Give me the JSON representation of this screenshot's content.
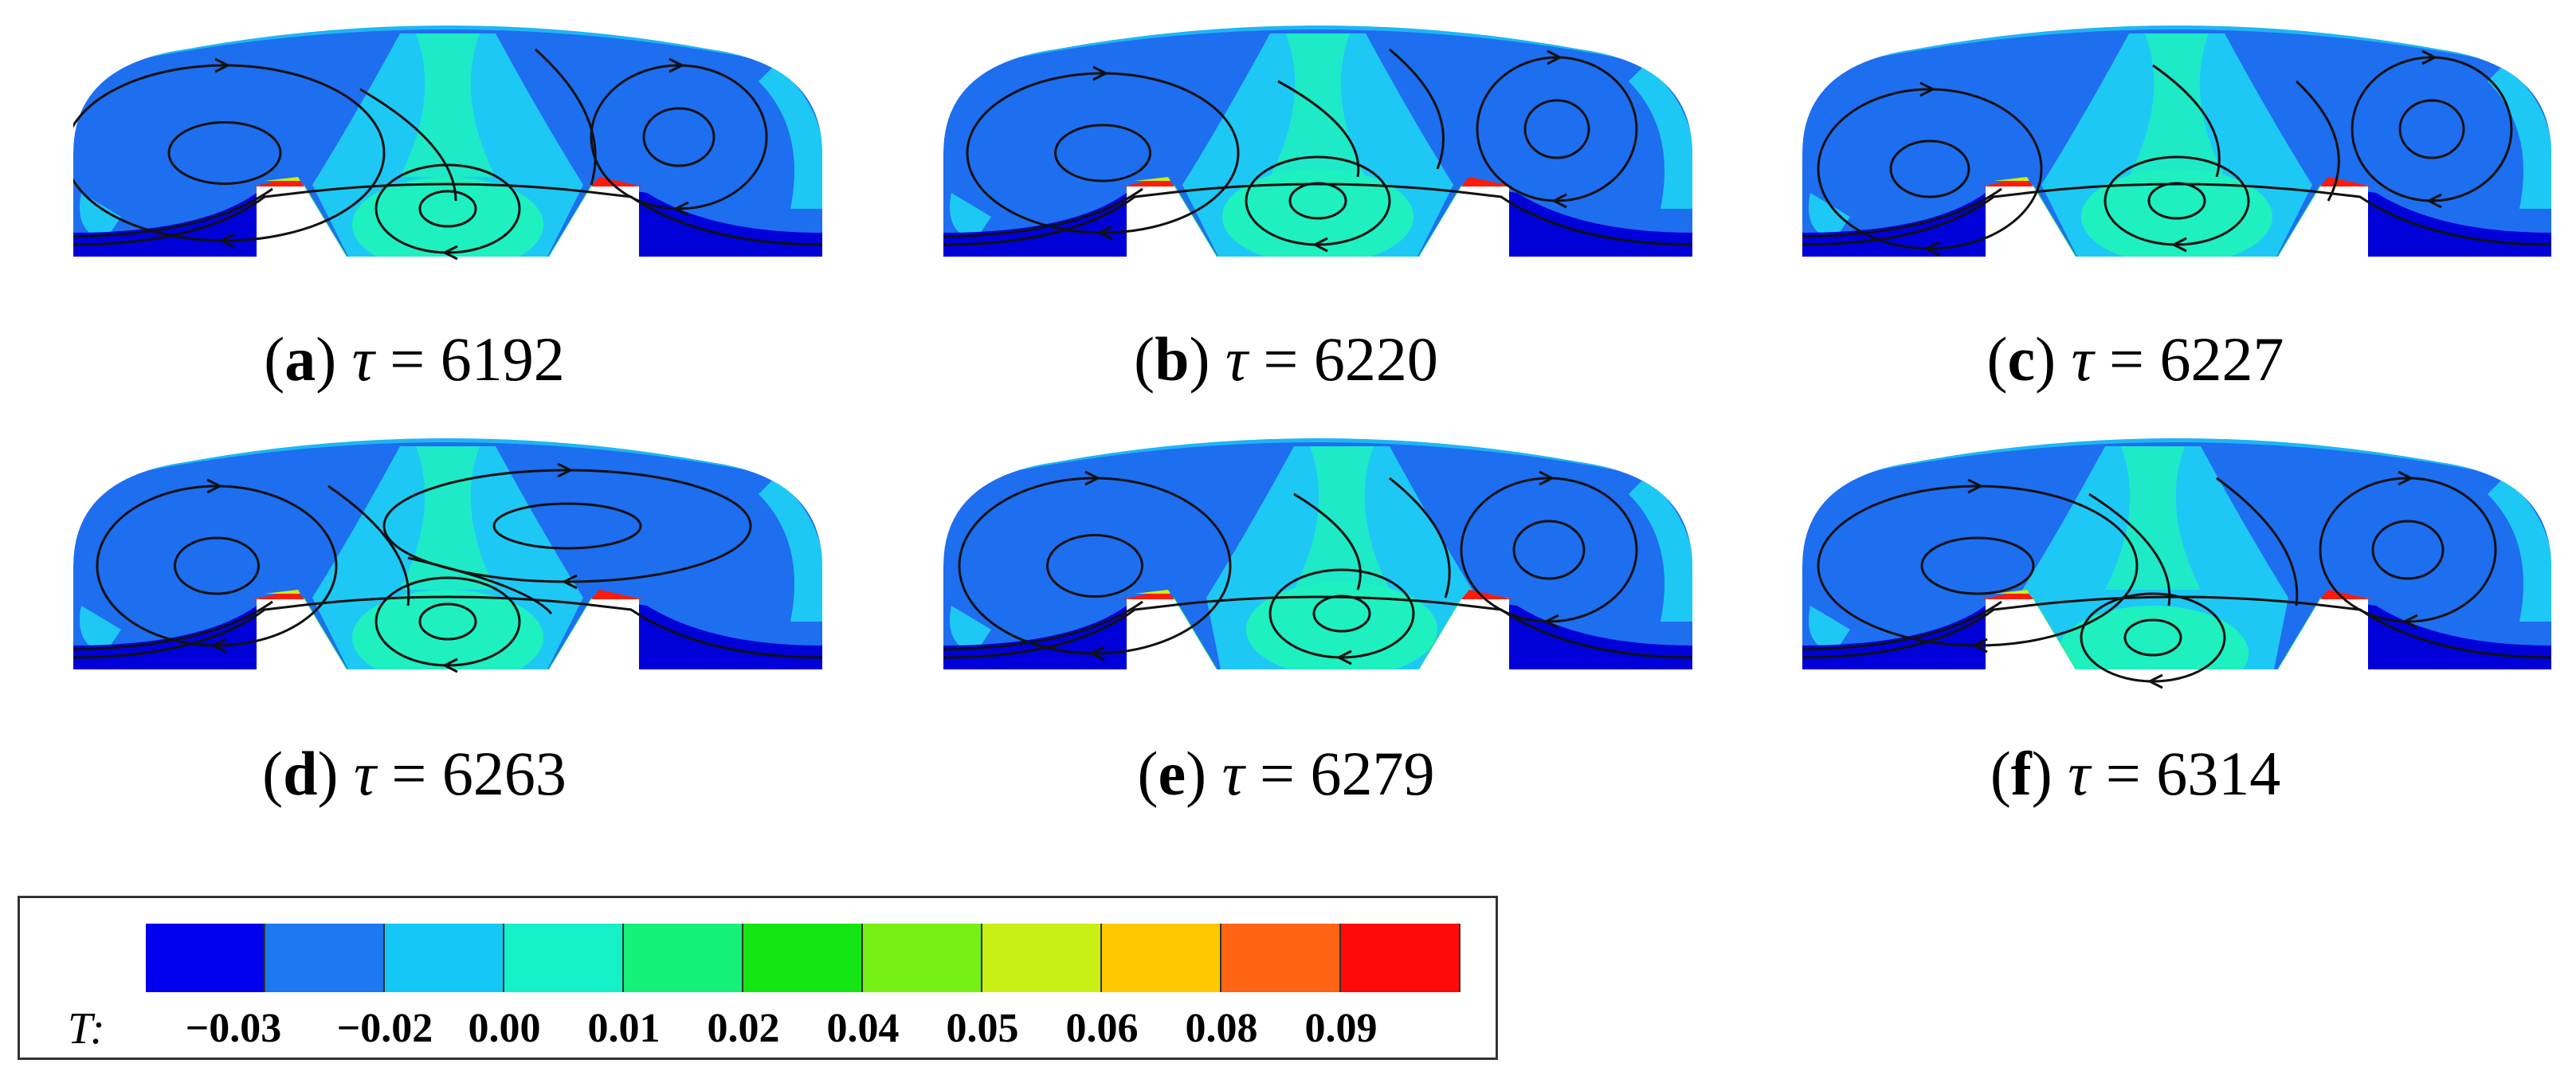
{
  "panels": [
    {
      "letter": "a",
      "time": "6192"
    },
    {
      "letter": "b",
      "time": "6220"
    },
    {
      "letter": "c",
      "time": "6227"
    },
    {
      "letter": "d",
      "time": "6263"
    },
    {
      "letter": "e",
      "time": "6279"
    },
    {
      "letter": "f",
      "time": "6314"
    }
  ],
  "caption_symbol": "τ",
  "caption_equals": "=",
  "legend": {
    "symbol": "T:",
    "colors": [
      "#0000ee",
      "#1e78f0",
      "#14c8f5",
      "#14f0c8",
      "#14f078",
      "#14e614",
      "#78f014",
      "#c8f014",
      "#ffc800",
      "#ff6414",
      "#ff0a0a"
    ],
    "ticks": [
      "−0.03",
      "−0.02",
      "0.00",
      "0.01",
      "0.02",
      "0.04",
      "0.05",
      "0.06",
      "0.08",
      "0.09"
    ]
  },
  "palette": {
    "dark_blue": "#0000d8",
    "mid_blue": "#1e6ef0",
    "cyan": "#1ec8f5",
    "aqua": "#1ef0c0",
    "green": "#30e860",
    "yellow": "#c8f014",
    "orange": "#ff9a00",
    "red": "#ff1a0a"
  }
}
